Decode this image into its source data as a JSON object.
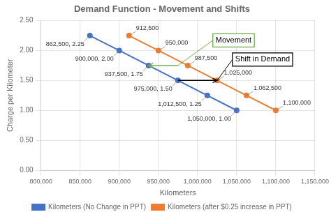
{
  "chart_data": {
    "type": "line",
    "title": "Demand Function - Movement and Shifts",
    "xlabel": "Kilometers",
    "ylabel": "Charge per Kilometer",
    "xlim": [
      800000,
      1150000
    ],
    "ylim": [
      0.0,
      2.5
    ],
    "xticks": [
      {
        "value": 800000,
        "label": "800,000"
      },
      {
        "value": 850000,
        "label": "850,000"
      },
      {
        "value": 900000,
        "label": "900,000"
      },
      {
        "value": 950000,
        "label": "950,000"
      },
      {
        "value": 1000000,
        "label": "1,000,000"
      },
      {
        "value": 1050000,
        "label": "1,050,000"
      },
      {
        "value": 1100000,
        "label": "1,100,000"
      },
      {
        "value": 1150000,
        "label": "1,150,000"
      }
    ],
    "yticks": [
      {
        "value": 0.0,
        "label": "0.00"
      },
      {
        "value": 0.5,
        "label": "0.50"
      },
      {
        "value": 1.0,
        "label": "1.00"
      },
      {
        "value": 1.5,
        "label": "1.50"
      },
      {
        "value": 2.0,
        "label": "2.00"
      },
      {
        "value": 2.5,
        "label": "2.50"
      }
    ],
    "grid": true,
    "legend": "bottom",
    "series": [
      {
        "name": "Kilometers (No Change in PPT)",
        "color": "#4472C4",
        "marker": "circle",
        "x": [
          862500,
          900000,
          937500,
          975000,
          1012500,
          1050000
        ],
        "values": [
          2.25,
          2.0,
          1.75,
          1.5,
          1.25,
          1.0
        ]
      },
      {
        "name": "Kilometers (after $0.25 increase in PPT)",
        "color": "#ED7D31",
        "marker": "circle",
        "x": [
          912500,
          950000,
          987500,
          1025000,
          1062500,
          1100000
        ],
        "values": [
          2.25,
          2.0,
          1.75,
          1.5,
          1.25,
          1.0
        ]
      }
    ],
    "annotations": [
      {
        "x": 862500,
        "y": 2.25,
        "text": "862,500, 2.25"
      },
      {
        "x": 900000,
        "y": 2.0,
        "text": "900,000, 2.00"
      },
      {
        "x": 937500,
        "y": 1.75,
        "text": "937,500, 1.75"
      },
      {
        "x": 975000,
        "y": 1.5,
        "text": "975,000, 1.50"
      },
      {
        "x": 1012500,
        "y": 1.25,
        "text": "1,012,500, 1.25"
      },
      {
        "x": 1050000,
        "y": 1.0,
        "text": "1,050,000, 1.00"
      },
      {
        "x": 912500,
        "y": 2.25,
        "text": "912,500"
      },
      {
        "x": 950000,
        "y": 2.0,
        "text": "950,000"
      },
      {
        "x": 987500,
        "y": 1.75,
        "text": "987,500"
      },
      {
        "x": 1025000,
        "y": 1.5,
        "text": "1,025,000"
      },
      {
        "x": 1062500,
        "y": 1.25,
        "text": "1,062,500"
      },
      {
        "x": 1100000,
        "y": 1.0,
        "text": "1,100,000"
      }
    ],
    "arrows": [
      {
        "text": "Movement",
        "color": "#70AD47",
        "from": {
          "x": 975000,
          "y": 1.75
        },
        "to": {
          "x": 937500,
          "y": 1.75
        }
      },
      {
        "text": "Shift in Demand",
        "color": "#000000",
        "from": {
          "x": 975000,
          "y": 1.5
        },
        "to": {
          "x": 1025000,
          "y": 1.5
        }
      }
    ]
  }
}
